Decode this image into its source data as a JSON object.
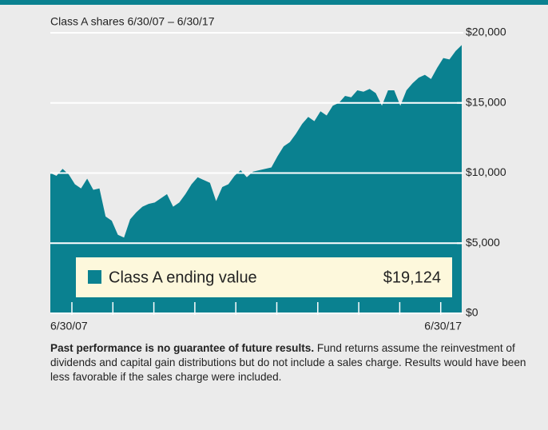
{
  "chart_data": {
    "type": "area",
    "subtitle": "Class A shares 6/30/07 – 6/30/17",
    "categories": [
      "6/30/07",
      null,
      null,
      null,
      null,
      null,
      null,
      null,
      null,
      null,
      null,
      null,
      null,
      null,
      null,
      null,
      null,
      null,
      null,
      null,
      null,
      null,
      null,
      null,
      null,
      null,
      null,
      null,
      null,
      null,
      null,
      null,
      null,
      null,
      null,
      null,
      null,
      null,
      null,
      null,
      null,
      null,
      null,
      null,
      null,
      null,
      null,
      null,
      null,
      null,
      null,
      null,
      null,
      null,
      null,
      null,
      null,
      null,
      null,
      null,
      null,
      null,
      null,
      null,
      null,
      null,
      null,
      "6/30/17"
    ],
    "series": [
      {
        "name": "Class A ending value",
        "color": "#0a8190",
        "values": [
          10000,
          9800,
          10300,
          9900,
          9200,
          8900,
          9600,
          8800,
          8900,
          6900,
          6600,
          5600,
          5400,
          6700,
          7200,
          7600,
          7800,
          7900,
          8200,
          8500,
          7600,
          7900,
          8500,
          9200,
          9700,
          9500,
          9300,
          8000,
          9000,
          9200,
          9800,
          10200,
          9700,
          10100,
          10200,
          10300,
          10400,
          11200,
          11900,
          12200,
          12800,
          13500,
          14000,
          13700,
          14400,
          14100,
          14800,
          15000,
          15500,
          15400,
          15900,
          15800,
          16000,
          15700,
          14800,
          15900,
          15900,
          14800,
          15900,
          16400,
          16800,
          17000,
          16700,
          17500,
          18200,
          18100,
          18700,
          19124
        ],
        "end_label": "$19,124"
      }
    ],
    "ylim": [
      0,
      20000
    ],
    "yticks": [
      {
        "value": 0,
        "label": "$0"
      },
      {
        "value": 5000,
        "label": "$5,000"
      },
      {
        "value": 10000,
        "label": "$10,000"
      },
      {
        "value": 15000,
        "label": "$15,000"
      },
      {
        "value": 20000,
        "label": "$20,000"
      }
    ],
    "grid": true
  },
  "note": {
    "bold": "Past performance is no guarantee of future results.",
    "text": "Fund returns assume the reinvestment of dividends and capital gain distributions but do not include a sales charge. Results would have been less favorable if the sales charge were included."
  }
}
